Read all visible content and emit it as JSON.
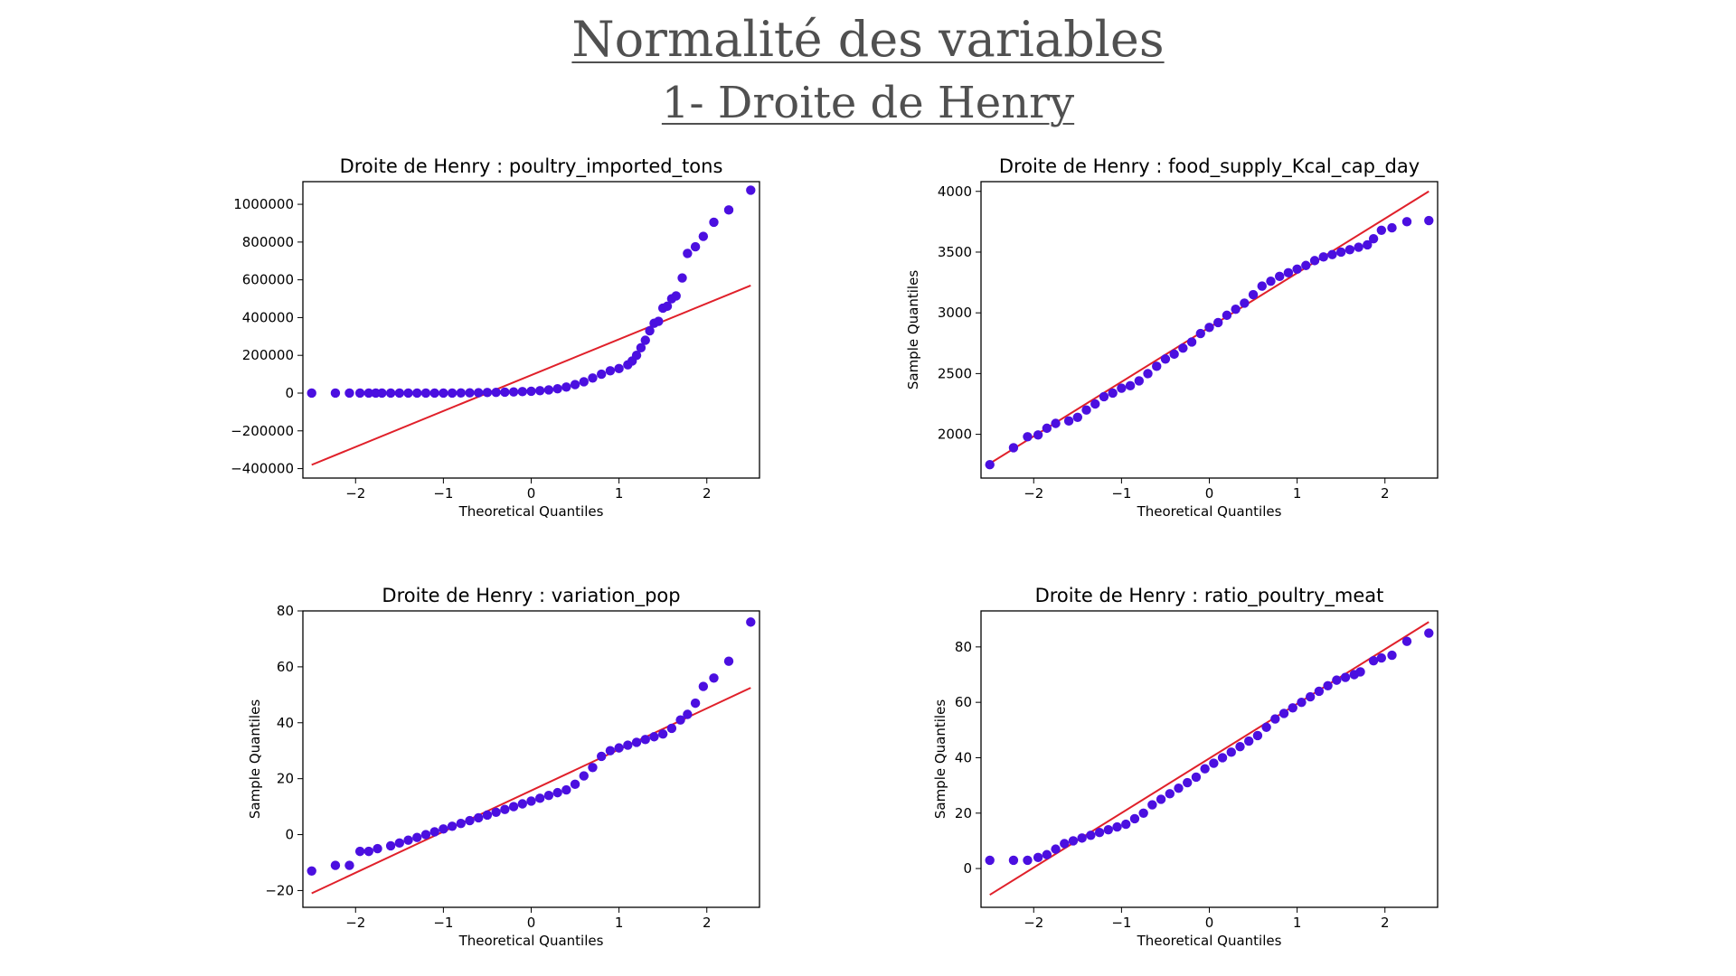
{
  "slide": {
    "title": "Normalité des variables",
    "subtitle": "1- Droite de Henry"
  },
  "colors": {
    "points": "#4b0fe0",
    "line": "#e0202a",
    "axes": "#000000",
    "title": "#505050"
  },
  "chart_data": [
    {
      "type": "scatter",
      "title": "Droite de Henry : poultry_imported_tons",
      "xlabel": "Theoretical Quantiles",
      "ylabel": "",
      "xlim": [
        -2.6,
        2.6
      ],
      "ylim": [
        -450000,
        1120000
      ],
      "xticks": [
        -2,
        -1,
        0,
        1,
        2
      ],
      "xtick_labels": [
        "−2",
        "−1",
        "0",
        "1",
        "2"
      ],
      "yticks": [
        -400000,
        -200000,
        0,
        200000,
        400000,
        600000,
        800000,
        1000000
      ],
      "ytick_labels": [
        "−400000",
        "−200000",
        "0",
        "200000",
        "400000",
        "600000",
        "800000",
        "1000000"
      ],
      "grid": false,
      "reference_line": {
        "x": [
          -2.5,
          2.5
        ],
        "y": [
          -380000,
          570000
        ]
      },
      "points": [
        [
          -2.5,
          0
        ],
        [
          -2.23,
          0
        ],
        [
          -2.07,
          0
        ],
        [
          -1.95,
          0
        ],
        [
          -1.85,
          0
        ],
        [
          -1.77,
          0
        ],
        [
          -1.7,
          0
        ],
        [
          -1.6,
          0
        ],
        [
          -1.5,
          0
        ],
        [
          -1.4,
          0
        ],
        [
          -1.3,
          0
        ],
        [
          -1.2,
          0
        ],
        [
          -1.1,
          0
        ],
        [
          -1.0,
          0
        ],
        [
          -0.9,
          0
        ],
        [
          -0.8,
          1000
        ],
        [
          -0.7,
          1500
        ],
        [
          -0.6,
          2000
        ],
        [
          -0.5,
          3000
        ],
        [
          -0.4,
          4000
        ],
        [
          -0.3,
          5000
        ],
        [
          -0.2,
          6000
        ],
        [
          -0.1,
          8000
        ],
        [
          0.0,
          10000
        ],
        [
          0.1,
          13000
        ],
        [
          0.2,
          17000
        ],
        [
          0.3,
          23000
        ],
        [
          0.4,
          32000
        ],
        [
          0.5,
          45000
        ],
        [
          0.6,
          60000
        ],
        [
          0.7,
          80000
        ],
        [
          0.8,
          100000
        ],
        [
          0.9,
          118000
        ],
        [
          1.0,
          130000
        ],
        [
          1.1,
          150000
        ],
        [
          1.15,
          170000
        ],
        [
          1.2,
          200000
        ],
        [
          1.25,
          240000
        ],
        [
          1.3,
          280000
        ],
        [
          1.35,
          330000
        ],
        [
          1.4,
          370000
        ],
        [
          1.45,
          380000
        ],
        [
          1.5,
          450000
        ],
        [
          1.55,
          460000
        ],
        [
          1.6,
          500000
        ],
        [
          1.65,
          515000
        ],
        [
          1.72,
          610000
        ],
        [
          1.78,
          740000
        ],
        [
          1.87,
          775000
        ],
        [
          1.96,
          830000
        ],
        [
          2.08,
          905000
        ],
        [
          2.25,
          970000
        ],
        [
          2.5,
          1075000
        ]
      ]
    },
    {
      "type": "scatter",
      "title": "Droite de Henry : food_supply_Kcal_cap_day",
      "xlabel": "Theoretical Quantiles",
      "ylabel": "Sample Quantiles",
      "xlim": [
        -2.6,
        2.6
      ],
      "ylim": [
        1640,
        4080
      ],
      "xticks": [
        -2,
        -1,
        0,
        1,
        2
      ],
      "xtick_labels": [
        "−2",
        "−1",
        "0",
        "1",
        "2"
      ],
      "yticks": [
        2000,
        2500,
        3000,
        3500,
        4000
      ],
      "ytick_labels": [
        "2000",
        "2500",
        "3000",
        "3500",
        "4000"
      ],
      "grid": false,
      "reference_line": {
        "x": [
          -2.5,
          2.5
        ],
        "y": [
          1760,
          4000
        ]
      },
      "points": [
        [
          -2.5,
          1750
        ],
        [
          -2.23,
          1890
        ],
        [
          -2.07,
          1980
        ],
        [
          -1.95,
          1995
        ],
        [
          -1.85,
          2050
        ],
        [
          -1.75,
          2090
        ],
        [
          -1.6,
          2110
        ],
        [
          -1.5,
          2140
        ],
        [
          -1.4,
          2200
        ],
        [
          -1.3,
          2250
        ],
        [
          -1.2,
          2310
        ],
        [
          -1.1,
          2340
        ],
        [
          -1.0,
          2380
        ],
        [
          -0.9,
          2400
        ],
        [
          -0.8,
          2440
        ],
        [
          -0.7,
          2500
        ],
        [
          -0.6,
          2560
        ],
        [
          -0.5,
          2620
        ],
        [
          -0.4,
          2660
        ],
        [
          -0.3,
          2710
        ],
        [
          -0.2,
          2760
        ],
        [
          -0.1,
          2830
        ],
        [
          0.0,
          2880
        ],
        [
          0.1,
          2920
        ],
        [
          0.2,
          2980
        ],
        [
          0.3,
          3030
        ],
        [
          0.4,
          3080
        ],
        [
          0.5,
          3150
        ],
        [
          0.6,
          3220
        ],
        [
          0.7,
          3260
        ],
        [
          0.8,
          3300
        ],
        [
          0.9,
          3330
        ],
        [
          1.0,
          3360
        ],
        [
          1.1,
          3390
        ],
        [
          1.2,
          3430
        ],
        [
          1.3,
          3460
        ],
        [
          1.4,
          3480
        ],
        [
          1.5,
          3500
        ],
        [
          1.6,
          3520
        ],
        [
          1.7,
          3540
        ],
        [
          1.8,
          3560
        ],
        [
          1.87,
          3610
        ],
        [
          1.96,
          3680
        ],
        [
          2.08,
          3700
        ],
        [
          2.25,
          3750
        ],
        [
          2.5,
          3760
        ]
      ]
    },
    {
      "type": "scatter",
      "title": "Droite de Henry : variation_pop",
      "xlabel": "Theoretical Quantiles",
      "ylabel": "Sample Quantiles",
      "xlim": [
        -2.6,
        2.6
      ],
      "ylim": [
        -26,
        80
      ],
      "xticks": [
        -2,
        -1,
        0,
        1,
        2
      ],
      "xtick_labels": [
        "−2",
        "−1",
        "0",
        "1",
        "2"
      ],
      "yticks": [
        -20,
        0,
        20,
        40,
        60,
        80
      ],
      "ytick_labels": [
        "−20",
        "0",
        "20",
        "40",
        "60",
        "80"
      ],
      "grid": false,
      "reference_line": {
        "x": [
          -2.5,
          2.5
        ],
        "y": [
          -21,
          52.5
        ]
      },
      "points": [
        [
          -2.5,
          -13
        ],
        [
          -2.23,
          -11
        ],
        [
          -2.07,
          -11
        ],
        [
          -1.95,
          -6
        ],
        [
          -1.85,
          -6
        ],
        [
          -1.75,
          -5
        ],
        [
          -1.6,
          -4
        ],
        [
          -1.5,
          -3
        ],
        [
          -1.4,
          -2
        ],
        [
          -1.3,
          -1
        ],
        [
          -1.2,
          0
        ],
        [
          -1.1,
          1
        ],
        [
          -1.0,
          2
        ],
        [
          -0.9,
          3
        ],
        [
          -0.8,
          4
        ],
        [
          -0.7,
          5
        ],
        [
          -0.6,
          6
        ],
        [
          -0.5,
          7
        ],
        [
          -0.4,
          8
        ],
        [
          -0.3,
          9
        ],
        [
          -0.2,
          10
        ],
        [
          -0.1,
          11
        ],
        [
          0.0,
          12
        ],
        [
          0.1,
          13
        ],
        [
          0.2,
          14
        ],
        [
          0.3,
          15
        ],
        [
          0.4,
          16
        ],
        [
          0.5,
          18
        ],
        [
          0.6,
          21
        ],
        [
          0.7,
          24
        ],
        [
          0.8,
          28
        ],
        [
          0.9,
          30
        ],
        [
          1.0,
          31
        ],
        [
          1.1,
          32
        ],
        [
          1.2,
          33
        ],
        [
          1.3,
          34
        ],
        [
          1.4,
          35
        ],
        [
          1.5,
          36
        ],
        [
          1.6,
          38
        ],
        [
          1.7,
          41
        ],
        [
          1.78,
          43
        ],
        [
          1.87,
          47
        ],
        [
          1.96,
          53
        ],
        [
          2.08,
          56
        ],
        [
          2.25,
          62
        ],
        [
          2.5,
          76
        ]
      ]
    },
    {
      "type": "scatter",
      "title": "Droite de Henry : ratio_poultry_meat",
      "xlabel": "Theoretical Quantiles",
      "ylabel": "Sample Quantiles",
      "xlim": [
        -2.6,
        2.6
      ],
      "ylim": [
        -14,
        93
      ],
      "xticks": [
        -2,
        -1,
        0,
        1,
        2
      ],
      "xtick_labels": [
        "−2",
        "−1",
        "0",
        "1",
        "2"
      ],
      "yticks": [
        0,
        20,
        40,
        60,
        80
      ],
      "ytick_labels": [
        "0",
        "20",
        "40",
        "60",
        "80"
      ],
      "grid": false,
      "reference_line": {
        "x": [
          -2.5,
          2.5
        ],
        "y": [
          -9.5,
          89
        ]
      },
      "points": [
        [
          -2.5,
          3
        ],
        [
          -2.23,
          3
        ],
        [
          -2.07,
          3
        ],
        [
          -1.95,
          4
        ],
        [
          -1.85,
          5
        ],
        [
          -1.75,
          7
        ],
        [
          -1.65,
          9
        ],
        [
          -1.55,
          10
        ],
        [
          -1.45,
          11
        ],
        [
          -1.35,
          12
        ],
        [
          -1.25,
          13
        ],
        [
          -1.15,
          14
        ],
        [
          -1.05,
          15
        ],
        [
          -0.95,
          16
        ],
        [
          -0.85,
          18
        ],
        [
          -0.75,
          20
        ],
        [
          -0.65,
          23
        ],
        [
          -0.55,
          25
        ],
        [
          -0.45,
          27
        ],
        [
          -0.35,
          29
        ],
        [
          -0.25,
          31
        ],
        [
          -0.15,
          33
        ],
        [
          -0.05,
          36
        ],
        [
          0.05,
          38
        ],
        [
          0.15,
          40
        ],
        [
          0.25,
          42
        ],
        [
          0.35,
          44
        ],
        [
          0.45,
          46
        ],
        [
          0.55,
          48
        ],
        [
          0.65,
          51
        ],
        [
          0.75,
          54
        ],
        [
          0.85,
          56
        ],
        [
          0.95,
          58
        ],
        [
          1.05,
          60
        ],
        [
          1.15,
          62
        ],
        [
          1.25,
          64
        ],
        [
          1.35,
          66
        ],
        [
          1.45,
          68
        ],
        [
          1.55,
          69
        ],
        [
          1.65,
          70
        ],
        [
          1.72,
          71
        ],
        [
          1.87,
          75
        ],
        [
          1.96,
          76
        ],
        [
          2.08,
          77
        ],
        [
          2.25,
          82
        ],
        [
          2.5,
          85
        ]
      ]
    }
  ]
}
